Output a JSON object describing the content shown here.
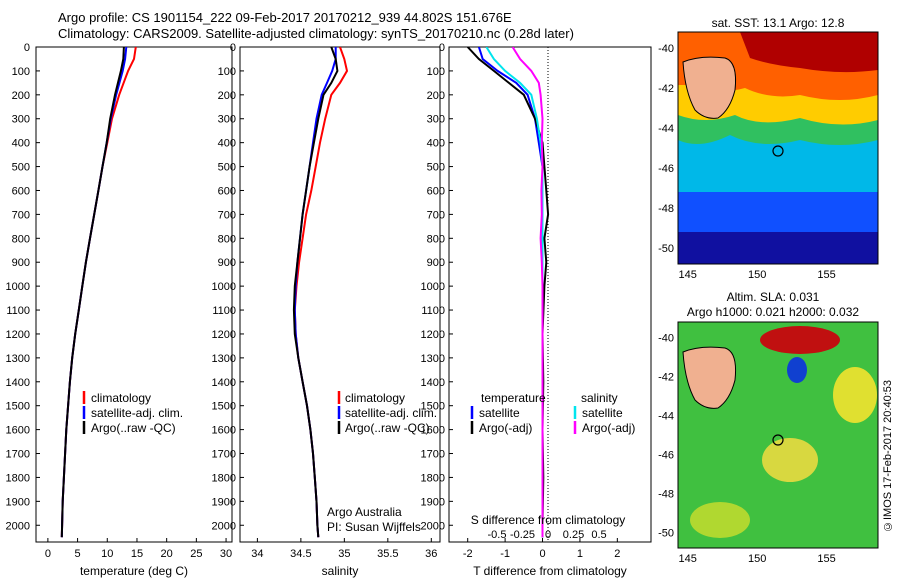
{
  "title_line1": "Argo profile: CS 1901154_222 09-Feb-2017 20170212_939 44.802S 151.676E",
  "title_line2": "Climatology: CARS2009. Satellite-adjusted climatology: synTS_20170210.nc (0.28d later)",
  "footer_vertical": "©IMOS 17-Feb-2017 20:40:53",
  "colors": {
    "climatology": "#ff0000",
    "satellite": "#0000ff",
    "argo": "#000000",
    "sal_sat": "#00e5ee",
    "sal_argo": "#ff00ff"
  },
  "panel1": {
    "xlabel": "temperature (deg C)",
    "legend": [
      "climatology",
      "satellite-adj. clim.",
      "Argo(..raw -QC)"
    ]
  },
  "panel2": {
    "xlabel": "salinity",
    "legend": [
      "climatology",
      "satellite-adj. clim.",
      "Argo(..raw -QC)"
    ],
    "note1": "Argo Australia",
    "note2": "PI: Susan Wijffels"
  },
  "panel3": {
    "top_label": "S difference from climatology",
    "xlabel": "T difference from climatology",
    "legend_temp_head": "temperature",
    "legend_sal_head": "salinity",
    "legend_items": [
      "satellite",
      "Argo(-adj)",
      "satellite",
      "Argo(-adj)"
    ]
  },
  "map1": {
    "title": "sat. SST: 13.1  Argo: 12.8"
  },
  "map2": {
    "title1": "Altim. SLA: 0.031",
    "title2": "Argo h1000: 0.021 h2000: 0.032"
  },
  "chart_data": [
    {
      "type": "line",
      "xlabel": "temperature (deg C)",
      "ylabel": "",
      "xlim": [
        -2,
        31
      ],
      "ylim": [
        2070,
        0
      ],
      "xticks": [
        0,
        5,
        10,
        15,
        20,
        25,
        30
      ],
      "yticks": [
        0,
        100,
        200,
        300,
        400,
        500,
        600,
        700,
        800,
        900,
        1000,
        1100,
        1200,
        1300,
        1400,
        1500,
        1600,
        1700,
        1800,
        1900,
        2000
      ],
      "series": [
        {
          "name": "climatology",
          "depth": [
            0,
            50,
            100,
            200,
            300,
            400,
            500,
            600,
            700,
            800,
            900,
            1000,
            1100,
            1200,
            1300,
            1400,
            1500,
            1600,
            1700,
            1800,
            1900,
            2000,
            2050
          ],
          "values": [
            14.8,
            14.5,
            13.5,
            12.0,
            10.8,
            10.0,
            9.2,
            8.5,
            7.8,
            7.1,
            6.4,
            5.8,
            5.2,
            4.6,
            4.1,
            3.7,
            3.4,
            3.1,
            2.9,
            2.7,
            2.5,
            2.4,
            2.35
          ]
        },
        {
          "name": "satellite-adj. clim.",
          "depth": [
            0,
            50,
            100,
            200,
            300,
            400,
            500,
            600,
            700,
            800,
            900,
            1000,
            1100,
            1200,
            1300,
            1400,
            1500,
            1600,
            1700,
            1800,
            1900,
            2000,
            2050
          ],
          "values": [
            13.2,
            13.0,
            12.6,
            11.5,
            10.6,
            9.9,
            9.2,
            8.5,
            7.8,
            7.1,
            6.4,
            5.8,
            5.2,
            4.6,
            4.1,
            3.7,
            3.4,
            3.1,
            2.9,
            2.7,
            2.5,
            2.4,
            2.35
          ]
        },
        {
          "name": "Argo(..raw -QC)",
          "depth": [
            0,
            50,
            100,
            200,
            300,
            400,
            500,
            600,
            700,
            800,
            900,
            1000,
            1100,
            1200,
            1300,
            1400,
            1500,
            1600,
            1700,
            1800,
            1900,
            2000,
            2050
          ],
          "values": [
            12.8,
            12.7,
            12.3,
            11.3,
            10.5,
            9.9,
            9.2,
            8.5,
            7.8,
            7.1,
            6.4,
            5.8,
            5.2,
            4.6,
            4.1,
            3.7,
            3.4,
            3.1,
            2.9,
            2.7,
            2.5,
            2.4,
            2.35
          ]
        }
      ]
    },
    {
      "type": "line",
      "xlabel": "salinity",
      "ylabel": "",
      "xlim": [
        33.8,
        36.1
      ],
      "ylim": [
        2070,
        0
      ],
      "xticks": [
        34,
        34.5,
        35,
        35.5,
        36
      ],
      "yticks": [
        0,
        100,
        200,
        300,
        400,
        500,
        600,
        700,
        800,
        900,
        1000,
        1100,
        1200,
        1300,
        1400,
        1500,
        1600,
        1700,
        1800,
        1900,
        2000
      ],
      "series": [
        {
          "name": "climatology",
          "depth": [
            0,
            50,
            100,
            150,
            200,
            300,
            400,
            500,
            600,
            700,
            800,
            900,
            1000,
            1100,
            1200,
            1300,
            1400,
            1500,
            1600,
            1700,
            1800,
            1900,
            2000,
            2050
          ],
          "values": [
            34.95,
            35.0,
            35.03,
            34.95,
            34.85,
            34.78,
            34.72,
            34.67,
            34.62,
            34.56,
            34.52,
            34.48,
            34.45,
            34.43,
            34.44,
            34.47,
            34.52,
            34.57,
            34.61,
            34.64,
            34.66,
            34.68,
            34.69,
            34.7
          ]
        },
        {
          "name": "satellite-adj. clim.",
          "depth": [
            0,
            50,
            100,
            150,
            200,
            300,
            400,
            500,
            600,
            700,
            800,
            900,
            1000,
            1100,
            1200,
            1300,
            1400,
            1500,
            1600,
            1700,
            1800,
            1900,
            2000,
            2050
          ],
          "values": [
            34.9,
            34.9,
            34.86,
            34.8,
            34.74,
            34.68,
            34.64,
            34.6,
            34.56,
            34.52,
            34.49,
            34.46,
            34.44,
            34.43,
            34.44,
            34.47,
            34.52,
            34.57,
            34.61,
            34.64,
            34.66,
            34.68,
            34.69,
            34.7
          ]
        },
        {
          "name": "Argo(..raw -QC)",
          "depth": [
            0,
            50,
            100,
            150,
            200,
            300,
            400,
            500,
            600,
            700,
            800,
            900,
            1000,
            1100,
            1200,
            1300,
            1400,
            1500,
            1600,
            1700,
            1800,
            1900,
            2000,
            2050
          ],
          "values": [
            34.85,
            34.9,
            34.92,
            34.85,
            34.76,
            34.7,
            34.65,
            34.6,
            34.56,
            34.52,
            34.49,
            34.46,
            34.43,
            34.42,
            34.43,
            34.47,
            34.52,
            34.57,
            34.61,
            34.64,
            34.66,
            34.68,
            34.69,
            34.7
          ]
        }
      ]
    },
    {
      "type": "line",
      "xlabel": "T difference from climatology",
      "top_xlabel": "S difference from climatology",
      "xlim": [
        -2.5,
        2.9
      ],
      "ylim": [
        2070,
        0
      ],
      "xticks": [
        -2,
        -1,
        0,
        1,
        2
      ],
      "top_xticks": [
        "-0.5",
        "-0.25",
        "0",
        "0.25",
        "0.5"
      ],
      "yticks": [
        0,
        100,
        200,
        300,
        400,
        500,
        600,
        700,
        800,
        900,
        1000,
        1100,
        1200,
        1300,
        1400,
        1500,
        1600,
        1700,
        1800,
        1900,
        2000
      ],
      "series": [
        {
          "name": "temperature satellite",
          "depth": [
            0,
            50,
            100,
            150,
            200,
            300,
            400,
            500,
            600,
            700,
            800,
            900,
            1000,
            1200,
            1400,
            1600,
            1800,
            2000,
            2050
          ],
          "values": [
            -1.7,
            -1.6,
            -1.2,
            -0.7,
            -0.4,
            -0.2,
            -0.1,
            0,
            0,
            0,
            0,
            0,
            0,
            0,
            0,
            0,
            0,
            0,
            0
          ]
        },
        {
          "name": "temperature Argo(-adj)",
          "depth": [
            0,
            50,
            100,
            150,
            200,
            300,
            400,
            500,
            600,
            700,
            800,
            900,
            1000,
            1200,
            1400,
            1600,
            1800,
            2000,
            2050
          ],
          "values": [
            -2.0,
            -1.7,
            -1.3,
            -0.9,
            -0.5,
            -0.2,
            0,
            0.05,
            0.1,
            0.15,
            0.05,
            0.1,
            0.05,
            0,
            0.02,
            0,
            0.02,
            0,
            0
          ]
        },
        {
          "name": "salinity satellite",
          "depth": [
            0,
            50,
            100,
            150,
            200,
            300,
            400,
            500,
            600,
            700,
            800,
            900,
            1000,
            1200,
            1400,
            1600,
            1800,
            2000,
            2050
          ],
          "values": [
            -1.5,
            -1.3,
            -1.0,
            -0.6,
            -0.3,
            -0.15,
            -0.05,
            0,
            0,
            0,
            0,
            0,
            0,
            0,
            0,
            0,
            0,
            0,
            0
          ]
        },
        {
          "name": "salinity Argo(-adj)",
          "depth": [
            0,
            50,
            100,
            150,
            200,
            300,
            400,
            500,
            600,
            700,
            800,
            900,
            1000,
            1200,
            1400,
            1600,
            1800,
            2000,
            2050
          ],
          "values": [
            -0.8,
            -0.6,
            -0.3,
            -0.1,
            -0.05,
            0,
            -0.02,
            0,
            -0.03,
            -0.02,
            -0.05,
            -0.02,
            0,
            0,
            0,
            0,
            0,
            0,
            0
          ]
        }
      ]
    },
    {
      "type": "heatmap",
      "title": "sat. SST: 13.1  Argo: 12.8",
      "xticks": [
        145,
        150,
        155
      ],
      "yticks": [
        -40,
        -42,
        -44,
        -46,
        -48,
        -50
      ],
      "xlim": [
        144.3,
        158.7
      ],
      "ylim": [
        -50.8,
        -39.2
      ],
      "argo_position": {
        "lon": 151.676,
        "lat": -44.802
      }
    },
    {
      "type": "heatmap",
      "title": "Altim. SLA: 0.031  Argo h1000: 0.021 h2000: 0.032",
      "xticks": [
        145,
        150,
        155
      ],
      "yticks": [
        -40,
        -42,
        -44,
        -46,
        -48,
        -50
      ],
      "xlim": [
        144.3,
        158.7
      ],
      "ylim": [
        -50.8,
        -39.2
      ],
      "argo_position": {
        "lon": 151.676,
        "lat": -44.802
      }
    }
  ]
}
